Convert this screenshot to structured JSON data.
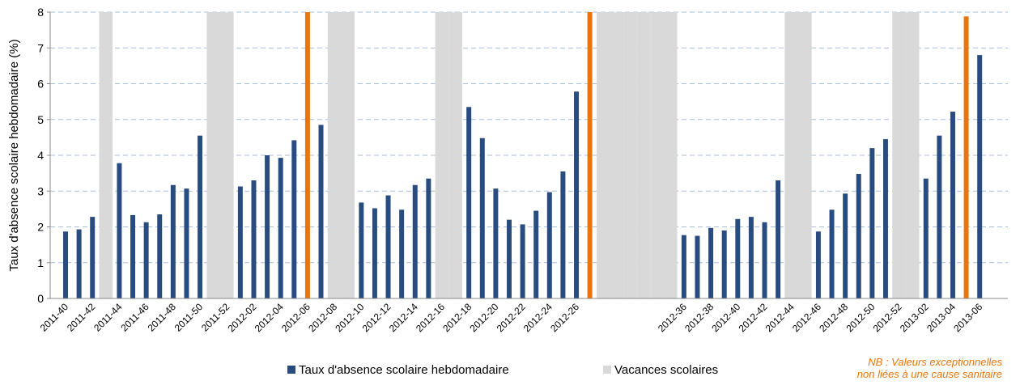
{
  "chart_data": {
    "type": "bar",
    "ylabel": "Taux d'absence scolaire hebdomadaire (%)",
    "categories": [
      "2011-40",
      null,
      "2011-42",
      null,
      "2011-44",
      null,
      "2011-46",
      null,
      "2011-48",
      null,
      "2011-50",
      null,
      "2011-52",
      null,
      "2012-02",
      null,
      "2012-04",
      null,
      "2012-06",
      null,
      "2012-08",
      null,
      "2012-10",
      null,
      "2012-12",
      null,
      "2012-14",
      null,
      "2012-16",
      null,
      "2012-18",
      null,
      "2012-20",
      null,
      "2012-22",
      null,
      "2012-24",
      null,
      "2012-26",
      null,
      null,
      null,
      null,
      null,
      null,
      null,
      "2012-36",
      null,
      "2012-38",
      null,
      "2012-40",
      null,
      "2012-42",
      null,
      "2012-44",
      null,
      "2012-46",
      null,
      "2012-48",
      null,
      "2012-50",
      null,
      "2012-52",
      null,
      "2013-02",
      null,
      "2013-04",
      null,
      "2013-06"
    ],
    "series": [
      {
        "name": "Taux d'absence scolaire hebdomadaire",
        "color": "#284b80",
        "values": [
          1.87,
          1.93,
          2.28,
          null,
          3.78,
          2.33,
          2.13,
          2.35,
          3.17,
          3.07,
          4.55,
          null,
          null,
          3.13,
          3.3,
          4.0,
          3.93,
          4.42,
          null,
          4.85,
          null,
          null,
          2.68,
          2.52,
          2.88,
          2.48,
          3.17,
          3.35,
          null,
          null,
          5.35,
          4.48,
          3.07,
          2.2,
          2.07,
          2.45,
          2.97,
          3.55,
          5.78,
          null,
          null,
          null,
          null,
          null,
          null,
          null,
          1.77,
          1.75,
          1.97,
          1.9,
          2.22,
          2.28,
          2.13,
          3.3,
          null,
          null,
          1.87,
          2.48,
          2.93,
          3.48,
          4.2,
          4.45,
          null,
          null,
          3.35,
          4.55,
          5.22,
          null,
          6.8
        ]
      },
      {
        "name": "Vacances scolaires",
        "color": "#d9d9d9",
        "values": [
          null,
          null,
          null,
          8,
          null,
          null,
          null,
          null,
          null,
          null,
          null,
          8,
          8,
          null,
          null,
          null,
          null,
          null,
          null,
          null,
          8,
          8,
          null,
          null,
          null,
          null,
          null,
          null,
          8,
          8,
          null,
          null,
          null,
          null,
          null,
          null,
          null,
          null,
          null,
          null,
          8,
          8,
          8,
          8,
          8,
          8,
          null,
          null,
          null,
          null,
          null,
          null,
          null,
          null,
          8,
          8,
          null,
          null,
          null,
          null,
          null,
          null,
          8,
          8,
          null,
          null,
          null,
          null,
          null
        ]
      },
      {
        "color": "#e8750e",
        "values": [
          null,
          null,
          null,
          null,
          null,
          null,
          null,
          null,
          null,
          null,
          null,
          null,
          null,
          null,
          null,
          null,
          null,
          null,
          8,
          null,
          null,
          null,
          null,
          null,
          null,
          null,
          null,
          null,
          null,
          null,
          null,
          null,
          null,
          null,
          null,
          null,
          null,
          null,
          null,
          8,
          null,
          null,
          null,
          null,
          null,
          null,
          null,
          null,
          null,
          null,
          null,
          null,
          null,
          null,
          null,
          null,
          null,
          null,
          null,
          null,
          null,
          null,
          null,
          null,
          null,
          null,
          null,
          7.88,
          null
        ]
      }
    ],
    "ylim": [
      0,
      8
    ],
    "yticks": [
      0,
      1,
      2,
      3,
      4,
      5,
      6,
      7,
      8
    ],
    "grid": true,
    "legend": "bottom",
    "note": [
      "NB : Valeurs exceptionnelles",
      "non liées à une cause sanitaire"
    ],
    "note_color": "#e8750e"
  }
}
